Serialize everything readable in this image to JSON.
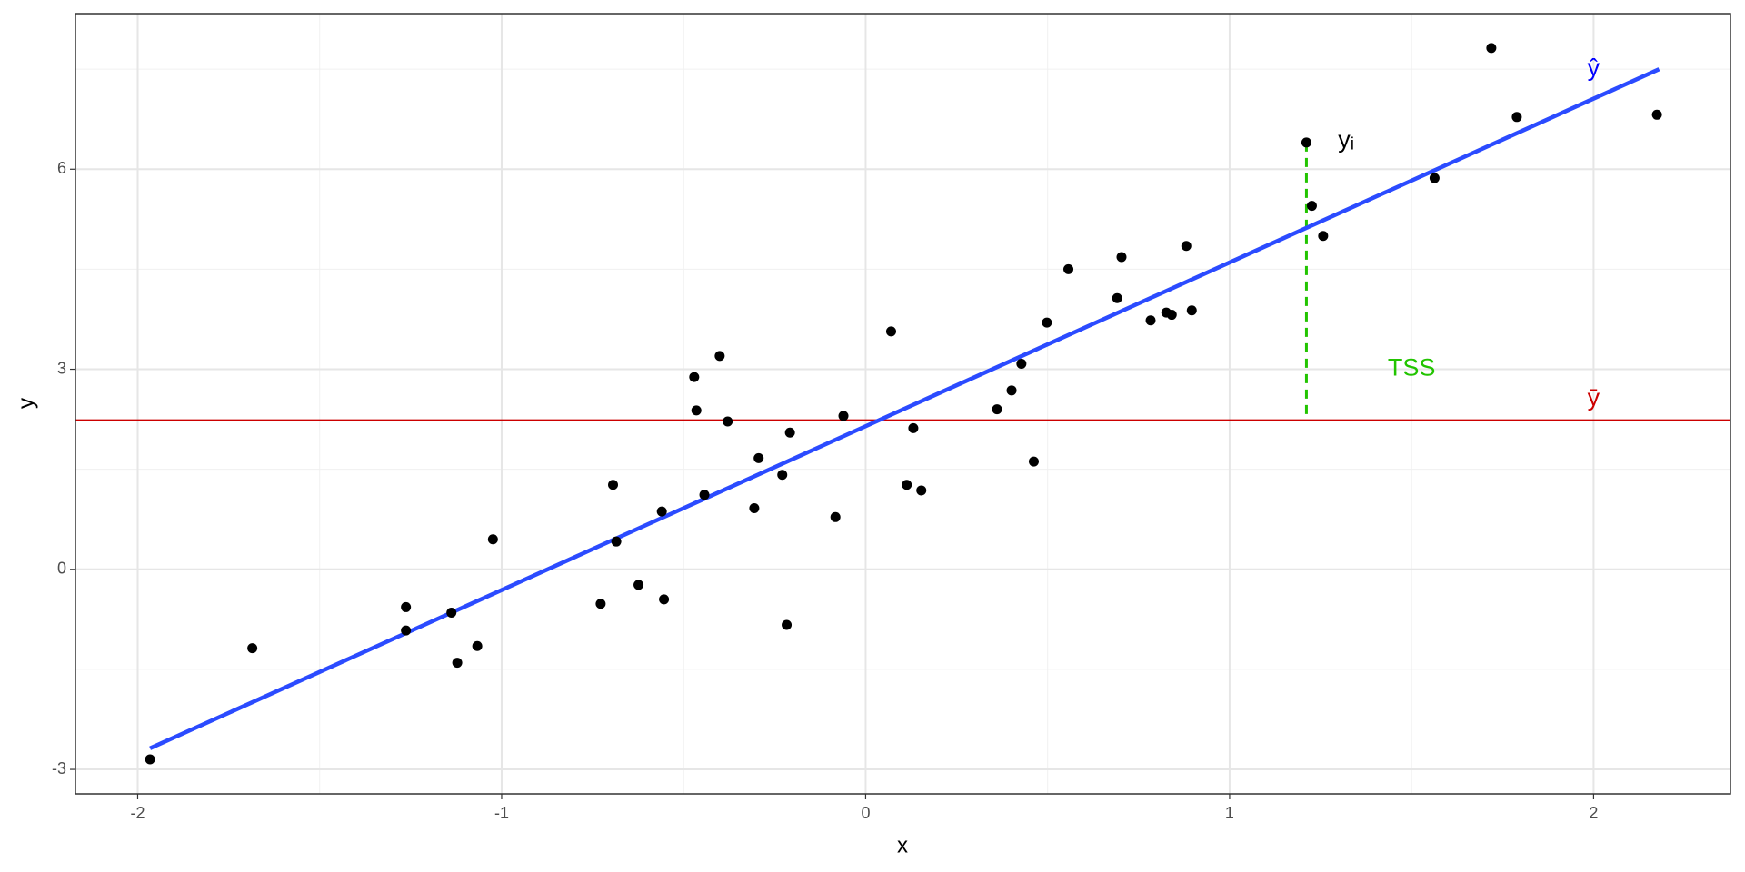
{
  "chart_data": {
    "type": "scatter",
    "x_label": "x",
    "y_label": "y",
    "xlim": [
      -2.171,
      2.376
    ],
    "ylim": [
      -3.367,
      8.333
    ],
    "xticks": [
      -2,
      -1,
      0,
      1,
      2
    ],
    "yticks": [
      -3,
      0,
      3,
      6
    ],
    "grid": true,
    "color": "#000000",
    "x": [
      -1.966,
      -1.685,
      -1.263,
      -1.263,
      -1.138,
      -1.122,
      -1.067,
      -1.024,
      -0.728,
      -0.694,
      -0.685,
      -0.624,
      -0.56,
      -0.554,
      -0.471,
      -0.465,
      -0.443,
      -0.401,
      -0.379,
      -0.306,
      -0.294,
      -0.229,
      -0.217,
      -0.208,
      -0.083,
      -0.061,
      0.07,
      0.113,
      0.131,
      0.153,
      0.361,
      0.401,
      0.428,
      0.462,
      0.498,
      0.557,
      0.691,
      0.703,
      0.783,
      0.826,
      0.841,
      0.881,
      0.896,
      1.211,
      1.226,
      1.257,
      1.563,
      1.719,
      1.789,
      2.174
    ],
    "values": [
      -2.85,
      -1.183,
      -0.567,
      -0.917,
      -0.65,
      -1.4,
      -1.15,
      0.45,
      -0.517,
      1.267,
      0.417,
      -0.233,
      0.867,
      -0.45,
      2.883,
      2.383,
      1.117,
      3.2,
      2.217,
      0.917,
      1.667,
      1.417,
      -0.833,
      2.05,
      0.783,
      2.3,
      3.567,
      1.267,
      2.117,
      1.183,
      2.4,
      2.683,
      3.083,
      1.617,
      3.7,
      4.5,
      4.067,
      4.683,
      3.733,
      3.85,
      3.817,
      4.85,
      3.883,
      6.4,
      5.45,
      5.0,
      5.867,
      7.817,
      6.783,
      6.817
    ],
    "fit_line": {
      "x": [
        -1.966,
        2.18
      ],
      "values": [
        -2.683,
        7.5
      ],
      "color": "#2b4bff"
    },
    "mean_line": {
      "value": 2.233,
      "color": "#cc0000"
    },
    "tss_segment": {
      "x": 1.211,
      "values": [
        6.4,
        2.233
      ],
      "color": "#22c400"
    },
    "annotations": [
      {
        "text": "yᵢ",
        "x": 1.32,
        "y": 6.42,
        "color": "#000000"
      },
      {
        "text": "ŷ",
        "x": 2.0,
        "y": 7.5,
        "color": "#0000ff"
      },
      {
        "text": "ȳ",
        "x": 2.0,
        "y": 2.55,
        "color": "#cc0000"
      },
      {
        "text": "TSS",
        "x": 1.5,
        "y": 3.0,
        "color": "#22c400"
      }
    ]
  }
}
